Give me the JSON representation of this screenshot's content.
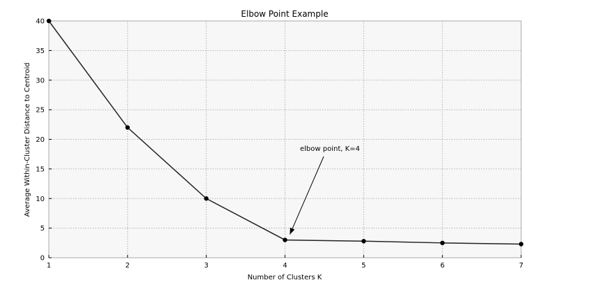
{
  "chart_data": {
    "type": "line",
    "title": "Elbow Point Example",
    "xlabel": "Number of Clusters K",
    "ylabel": "Average Within-Cluster Distance to Centroid",
    "x": [
      1,
      2,
      3,
      4,
      5,
      6,
      7
    ],
    "series": [
      {
        "values": [
          40,
          22,
          10,
          3,
          2.8,
          2.5,
          2.3
        ]
      }
    ],
    "xlim": [
      1,
      7
    ],
    "ylim": [
      0,
      40
    ],
    "xticks": [
      "1",
      "2",
      "3",
      "4",
      "5",
      "6",
      "7"
    ],
    "yticks": [
      "0",
      "5",
      "10",
      "15",
      "20",
      "25",
      "30",
      "35",
      "40"
    ],
    "grid": true,
    "annotation": {
      "text": "elbow point, K=4",
      "x": 4,
      "y": 3
    },
    "colors": {
      "line": "#222222",
      "marker": "#000000",
      "plot_bg": "#f7f7f7"
    }
  }
}
